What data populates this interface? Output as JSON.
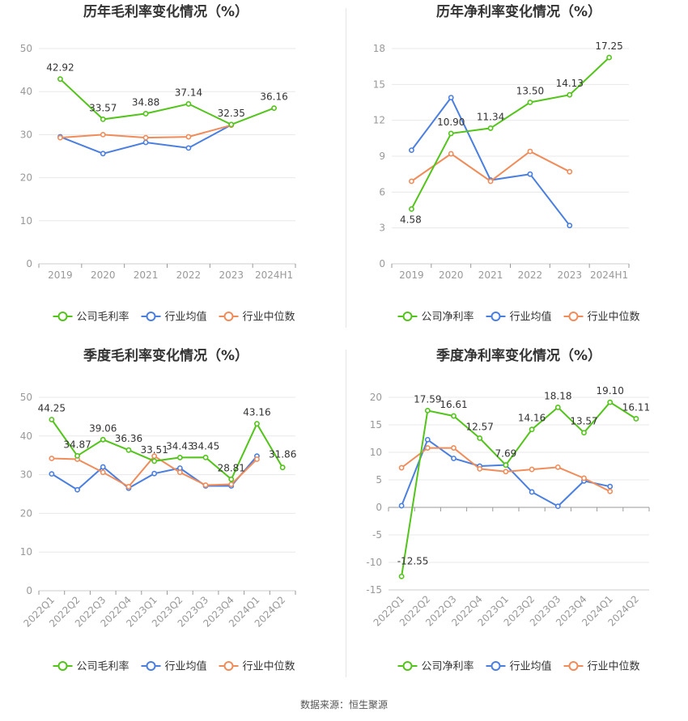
{
  "source": "数据来源：恒生聚源",
  "colors": {
    "company": "#52c41a",
    "avg": "#4a7fe0",
    "median": "#f08c5a"
  },
  "chart_data": [
    {
      "type": "line",
      "title": "历年毛利率变化情况（%）",
      "categories": [
        "2019",
        "2020",
        "2021",
        "2022",
        "2023",
        "2024H1"
      ],
      "ylim": [
        0,
        50
      ],
      "yticks": [
        0,
        10,
        20,
        30,
        40,
        50
      ],
      "grid": true,
      "legend_position": "bottom",
      "series": [
        {
          "name": "公司毛利率",
          "role": "company",
          "values": [
            42.92,
            33.57,
            34.88,
            37.14,
            32.35,
            36.16
          ],
          "labels": true
        },
        {
          "name": "行业均值",
          "role": "avg",
          "values": [
            29.5,
            25.6,
            28.2,
            26.9,
            32.3,
            null
          ],
          "labels": false
        },
        {
          "name": "行业中位数",
          "role": "median",
          "values": [
            29.3,
            30.0,
            29.3,
            29.5,
            32.2,
            null
          ],
          "labels": false
        }
      ]
    },
    {
      "type": "line",
      "title": "历年净利率变化情况（%）",
      "categories": [
        "2019",
        "2020",
        "2021",
        "2022",
        "2023",
        "2024H1"
      ],
      "ylim": [
        0,
        18
      ],
      "yticks": [
        0,
        3,
        6,
        9,
        12,
        15,
        18
      ],
      "grid": true,
      "legend_position": "bottom",
      "series": [
        {
          "name": "公司净利率",
          "role": "company",
          "values": [
            4.58,
            10.9,
            11.34,
            13.5,
            14.13,
            17.25
          ],
          "labels": true
        },
        {
          "name": "行业均值",
          "role": "avg",
          "values": [
            9.5,
            13.9,
            7.0,
            7.5,
            3.2,
            null
          ],
          "labels": false
        },
        {
          "name": "行业中位数",
          "role": "median",
          "values": [
            6.9,
            9.2,
            6.9,
            9.4,
            7.7,
            null
          ],
          "labels": false
        }
      ]
    },
    {
      "type": "line",
      "title": "季度毛利率变化情况（%）",
      "categories": [
        "2022Q1",
        "2022Q2",
        "2022Q3",
        "2022Q4",
        "2023Q1",
        "2023Q2",
        "2023Q3",
        "2023Q4",
        "2024Q1",
        "2024Q2"
      ],
      "ylim": [
        0,
        50
      ],
      "yticks": [
        0,
        10,
        20,
        30,
        40,
        50
      ],
      "grid": true,
      "legend_position": "bottom",
      "series": [
        {
          "name": "公司毛利率",
          "role": "company",
          "values": [
            44.25,
            34.87,
            39.06,
            36.36,
            33.51,
            34.43,
            34.45,
            28.81,
            43.16,
            31.86
          ],
          "labels": true
        },
        {
          "name": "行业均值",
          "role": "avg",
          "values": [
            30.2,
            26.1,
            32.0,
            26.5,
            30.3,
            31.7,
            27.1,
            27.1,
            34.8,
            null
          ],
          "labels": false
        },
        {
          "name": "行业中位数",
          "role": "median",
          "values": [
            34.2,
            34.0,
            30.6,
            26.9,
            34.8,
            30.6,
            27.3,
            27.5,
            34.0,
            null
          ],
          "labels": false
        }
      ]
    },
    {
      "type": "line",
      "title": "季度净利率变化情况（%）",
      "categories": [
        "2022Q1",
        "2022Q2",
        "2022Q3",
        "2022Q4",
        "2023Q1",
        "2023Q2",
        "2023Q3",
        "2023Q4",
        "2024Q1",
        "2024Q2"
      ],
      "ylim": [
        -15,
        20
      ],
      "yticks": [
        -15,
        -10,
        -5,
        0,
        5,
        10,
        15,
        20
      ],
      "grid": true,
      "legend_position": "bottom",
      "series": [
        {
          "name": "公司净利率",
          "role": "company",
          "values": [
            -12.55,
            17.59,
            16.61,
            12.57,
            7.69,
            14.16,
            18.18,
            13.57,
            19.1,
            16.11
          ],
          "labels": true
        },
        {
          "name": "行业均值",
          "role": "avg",
          "values": [
            0.3,
            12.3,
            8.9,
            7.5,
            7.7,
            2.8,
            0.2,
            4.8,
            3.8,
            null
          ],
          "labels": false
        },
        {
          "name": "行业中位数",
          "role": "median",
          "values": [
            7.2,
            10.8,
            10.8,
            7.0,
            6.5,
            6.9,
            7.3,
            5.3,
            2.9,
            null
          ],
          "labels": false
        }
      ]
    }
  ]
}
